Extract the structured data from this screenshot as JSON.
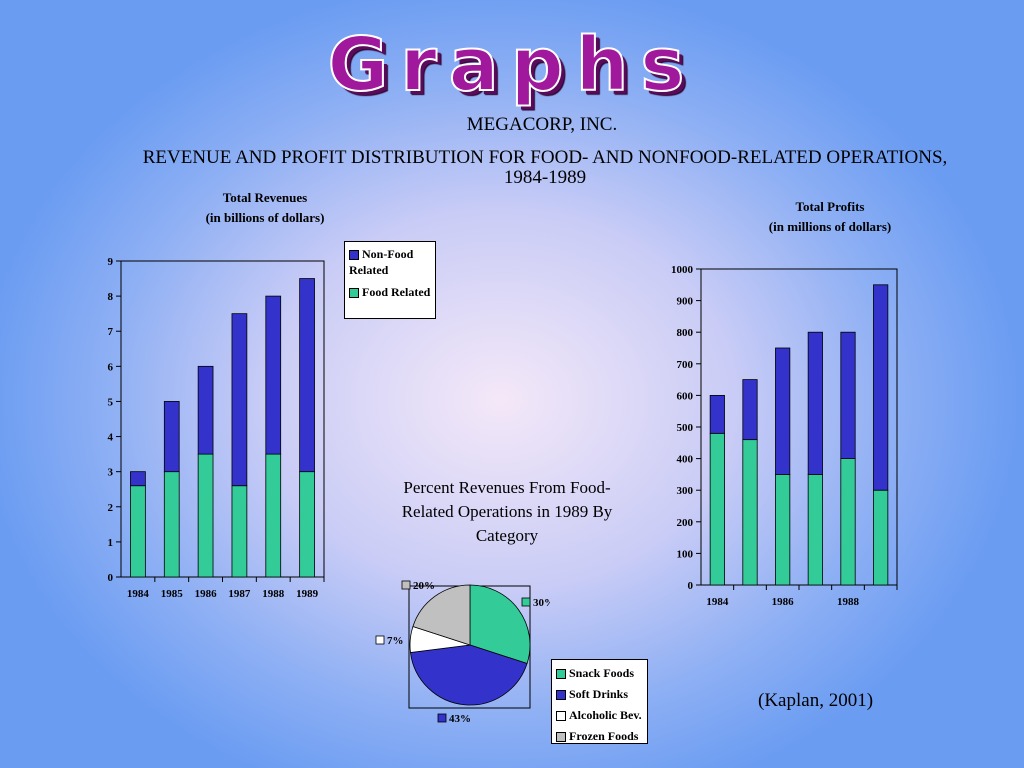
{
  "slide": {
    "title": "Graphs",
    "company": "MEGACORP, INC.",
    "subtitle": "REVENUE AND PROFIT DISTRIBUTION FOR FOOD- AND NONFOOD-RELATED OPERATIONS, 1984-1989",
    "citation": "(Kaplan, 2001)"
  },
  "colors": {
    "non_food": "#3333cc",
    "food": "#33cc99",
    "snack": "#33cc99",
    "soft_drinks": "#3333cc",
    "alcoholic": "#ffffff",
    "frozen": "#c0c0c0"
  },
  "chart_data": [
    {
      "type": "bar",
      "stacked": true,
      "title": "Total Revenues",
      "subtitle": "(in billions of  dollars)",
      "categories": [
        "1984",
        "1985",
        "1986",
        "1987",
        "1988",
        "1989"
      ],
      "series": [
        {
          "name": "Food Related",
          "values": [
            2.6,
            3.0,
            3.5,
            2.6,
            3.5,
            3.0
          ]
        },
        {
          "name": "Non-Food Related",
          "values": [
            0.4,
            2.0,
            2.5,
            4.9,
            4.5,
            5.5
          ]
        }
      ],
      "ylim": [
        0,
        9
      ],
      "yticks": [
        "0",
        "1",
        "2",
        "3",
        "4",
        "5",
        "6",
        "7",
        "8",
        "9"
      ],
      "legend": [
        "Non-Food Related",
        "Food Related"
      ]
    },
    {
      "type": "bar",
      "stacked": true,
      "title": "Total Profits",
      "subtitle": "(in millions of dollars)",
      "categories": [
        "1984",
        "1985",
        "1986",
        "1987",
        "1988",
        "1989"
      ],
      "xticks": [
        "1984",
        "1986",
        "1988"
      ],
      "series": [
        {
          "name": "Food Related",
          "values": [
            480,
            460,
            350,
            350,
            400,
            300
          ]
        },
        {
          "name": "Non-Food Related",
          "values": [
            120,
            190,
            400,
            450,
            400,
            650
          ]
        }
      ],
      "ylim": [
        0,
        1000
      ],
      "yticks": [
        "0",
        "100",
        "200",
        "300",
        "400",
        "500",
        "600",
        "700",
        "800",
        "900",
        "1000"
      ]
    },
    {
      "type": "pie",
      "title": "Percent Revenues From Food-Related Operations in 1989 By Category",
      "slices": [
        {
          "name": "Snack Foods",
          "value": 30,
          "label": "30%"
        },
        {
          "name": "Soft Drinks",
          "value": 43,
          "label": "43%"
        },
        {
          "name": "Alcoholic Bev.",
          "value": 7,
          "label": "7%"
        },
        {
          "name": "Frozen Foods",
          "value": 20,
          "label": "20%"
        }
      ]
    }
  ]
}
